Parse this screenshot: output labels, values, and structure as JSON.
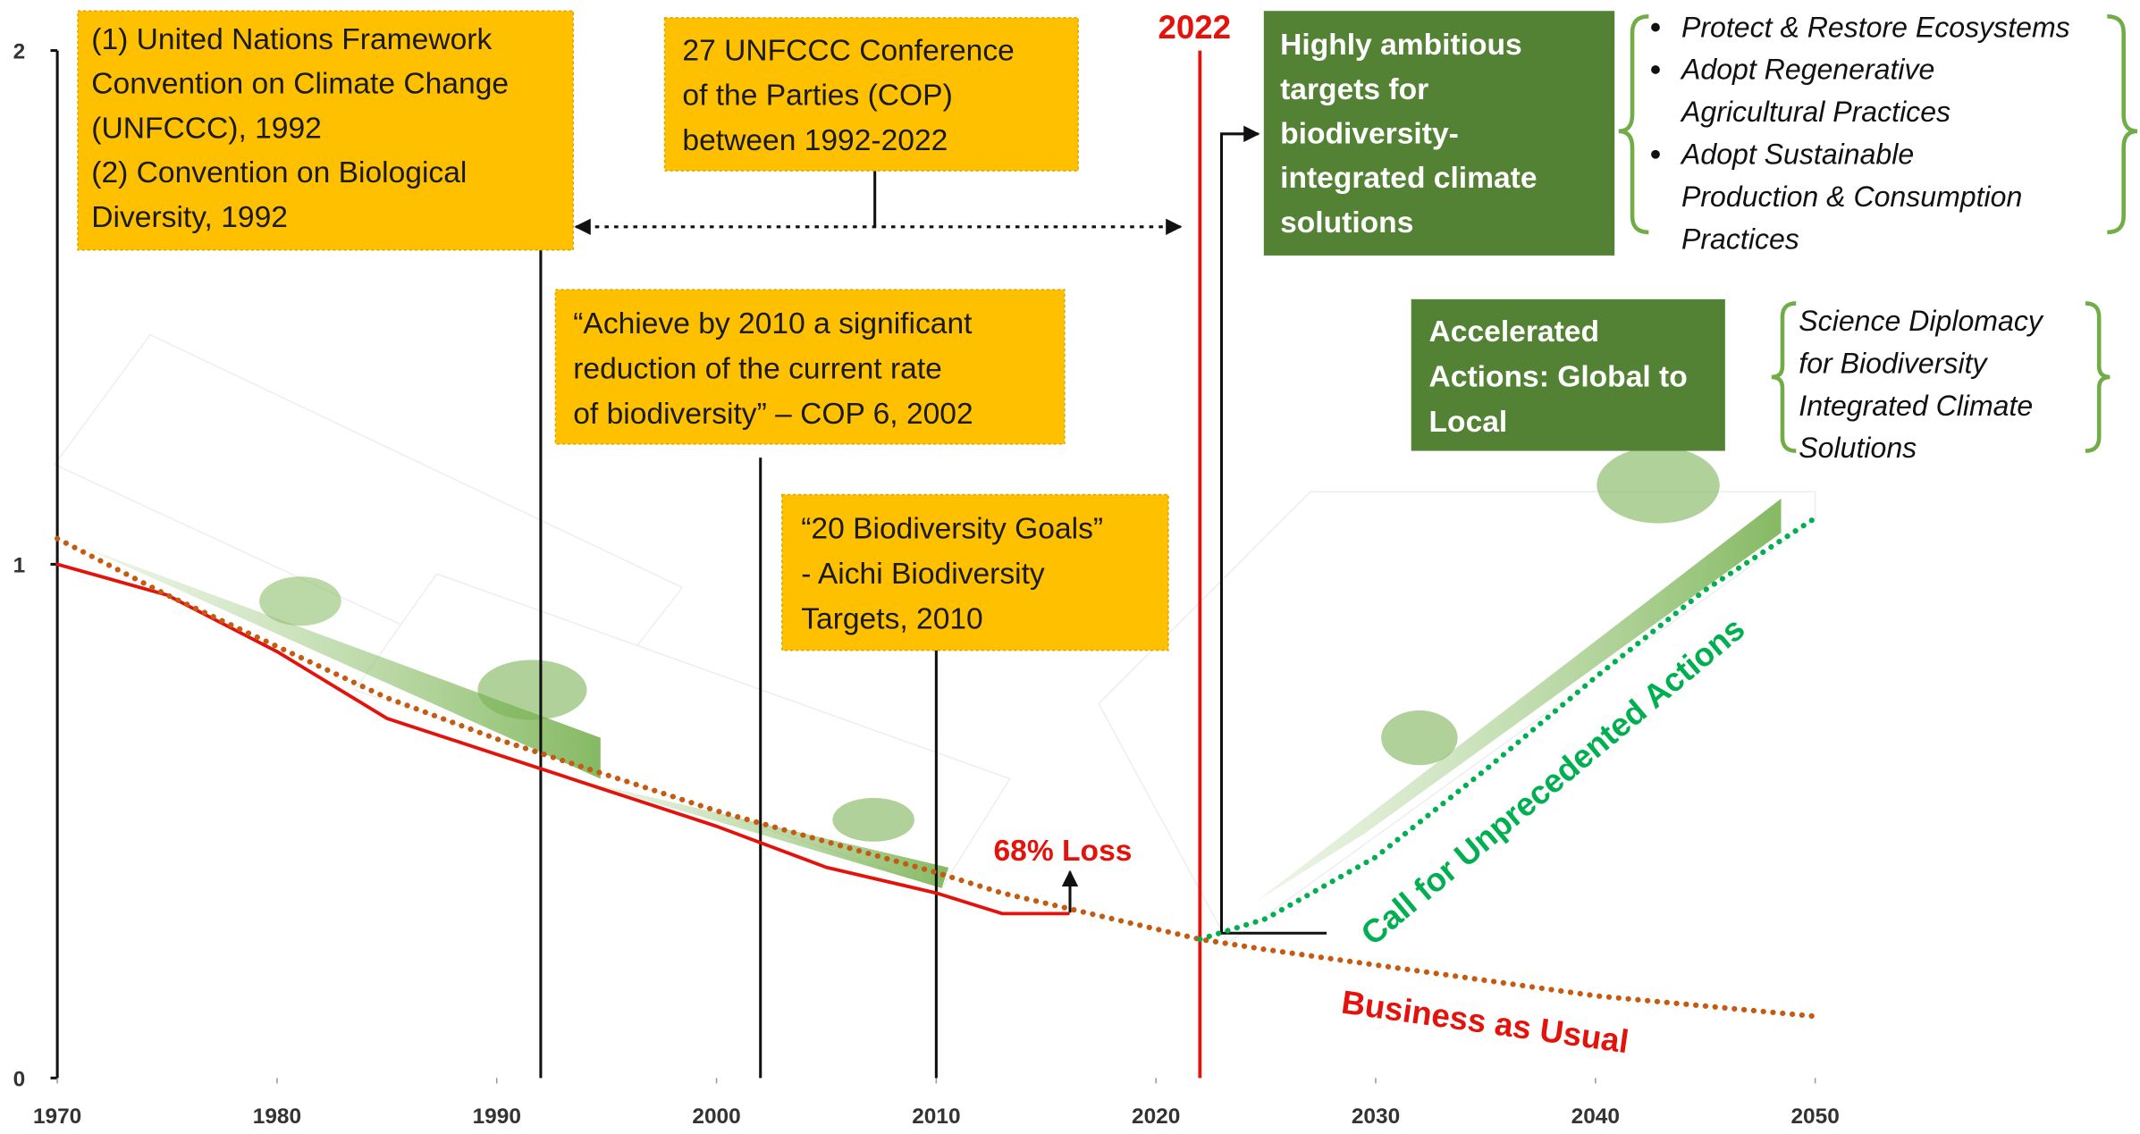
{
  "chart_data": {
    "type": "line",
    "x": [
      1970,
      1975,
      1980,
      1985,
      1990,
      1995,
      2000,
      2005,
      2010,
      2013,
      2016,
      2022,
      2025,
      2030,
      2035,
      2040,
      2045,
      2050
    ],
    "series": [
      {
        "color": "#e3120b",
        "style": "solid",
        "values": [
          1.0,
          0.94,
          0.83,
          0.7,
          0.63,
          0.56,
          0.49,
          0.41,
          0.36,
          0.32,
          0.32,
          null,
          null,
          null,
          null,
          null,
          null,
          null
        ]
      },
      {
        "name": "Business as Usual",
        "color": "#c55a11",
        "label_color": "#e3120b",
        "style": "dotted",
        "values": [
          1.05,
          0.94,
          0.84,
          0.74,
          0.66,
          0.59,
          0.52,
          0.46,
          0.4,
          0.36,
          0.33,
          0.27,
          0.25,
          0.22,
          0.19,
          0.16,
          0.14,
          0.12
        ]
      },
      {
        "name": "Call for Unprecedented Actions",
        "color": "#00b050",
        "label_color": "#00b050",
        "style": "dotted",
        "values": [
          null,
          null,
          null,
          null,
          null,
          null,
          null,
          null,
          null,
          null,
          null,
          0.27,
          0.31,
          0.43,
          0.6,
          0.78,
          0.95,
          1.09
        ]
      }
    ],
    "xlim": [
      1970,
      2050
    ],
    "xticks": [
      1970,
      1980,
      1990,
      2000,
      2010,
      2020,
      2030,
      2040,
      2050
    ],
    "ylim": [
      0,
      2
    ],
    "yticks": [
      0,
      1,
      2
    ],
    "vlines": [
      1992,
      2002,
      2010,
      2022
    ],
    "loss_label": "68% Loss",
    "annotations": [
      {
        "style": "orange",
        "lines": [
          "(1) United Nations Framework",
          "Convention on Climate Change",
          "(UNFCCC), 1992",
          "(2) Convention on Biological",
          "Diversity, 1992"
        ]
      },
      {
        "style": "orange",
        "lines": [
          "27 UNFCCC Conference",
          "of the Parties (COP)",
          "between 1992-2022"
        ]
      },
      {
        "style": "orange",
        "lines": [
          "“Achieve by 2010 a significant",
          "reduction of the current rate",
          "of biodiversity” – COP 6, 2002"
        ]
      },
      {
        "style": "orange",
        "lines": [
          "“20 Biodiversity Goals”",
          "- Aichi Biodiversity",
          "Targets, 2010"
        ]
      },
      {
        "style": "green",
        "lines": [
          "Highly ambitious",
          "targets for",
          "biodiversity-",
          "integrated climate",
          "solutions"
        ]
      },
      {
        "style": "green",
        "lines": [
          "Accelerated",
          "Actions: Global to",
          "Local"
        ]
      },
      {
        "style": "list",
        "lines": [
          "Protect & Restore Ecosystems",
          "Adopt Regenerative",
          "Agricultural Practices",
          "Adopt Sustainable",
          "Production & Consumption",
          "Practices"
        ]
      },
      {
        "style": "list",
        "lines": [
          "Science Diplomacy",
          "for Biodiversity",
          "Integrated Climate",
          "Solutions"
        ]
      }
    ]
  }
}
